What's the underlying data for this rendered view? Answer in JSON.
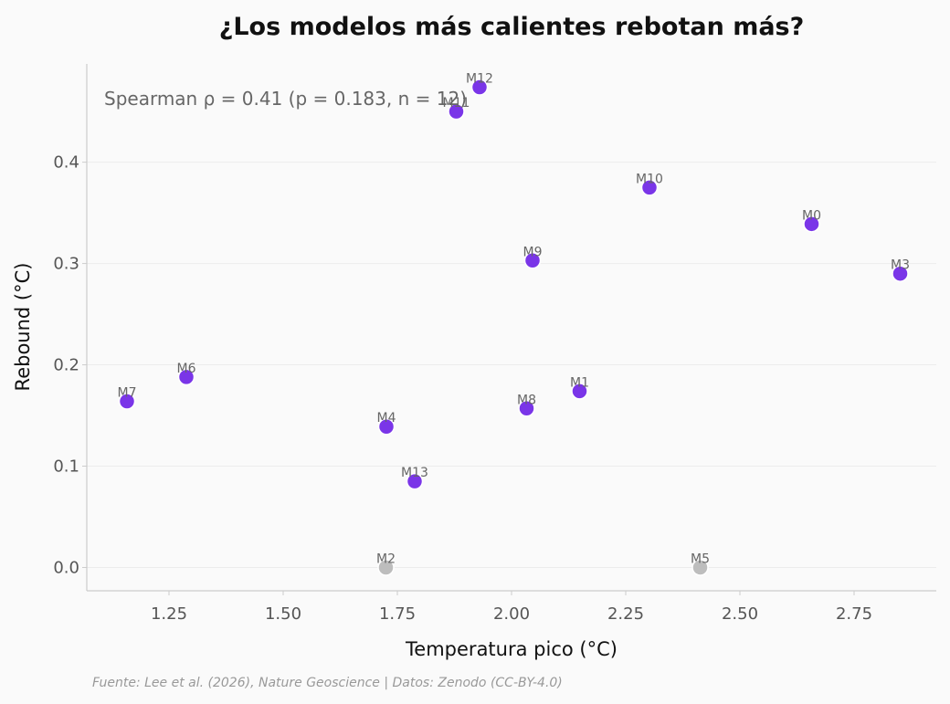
{
  "chart_data": {
    "type": "scatter",
    "title": "¿Los modelos más calientes rebotan más?",
    "xlabel": "Temperatura pico (°C)",
    "ylabel": "Rebound (°C)",
    "xlim": [
      1.07,
      2.93
    ],
    "ylim": [
      -0.023,
      0.497
    ],
    "xticks": [
      1.25,
      1.5,
      1.75,
      2.0,
      2.25,
      2.5,
      2.75
    ],
    "xtick_labels": [
      "1.25",
      "1.50",
      "1.75",
      "2.00",
      "2.25",
      "2.50",
      "2.75"
    ],
    "yticks": [
      0.0,
      0.1,
      0.2,
      0.3,
      0.4
    ],
    "ytick_labels": [
      "0.0",
      "0.1",
      "0.2",
      "0.3",
      "0.4"
    ],
    "grid": "horizontal",
    "annotation": "Spearman ρ = 0.41 (p = 0.183, n = 12)",
    "source": "Fuente: Lee et al. (2026), Nature Geoscience | Datos: Zenodo (CC-BY-4.0)",
    "colors": {
      "highlight": "#7a35e8",
      "muted": "#bdbdbd"
    },
    "points": [
      {
        "label": "M0",
        "x": 2.657,
        "y": 0.339,
        "group": "highlight"
      },
      {
        "label": "M1",
        "x": 2.149,
        "y": 0.174,
        "group": "highlight"
      },
      {
        "label": "M2",
        "x": 1.725,
        "y": 0.0,
        "group": "muted"
      },
      {
        "label": "M3",
        "x": 2.851,
        "y": 0.29,
        "group": "highlight"
      },
      {
        "label": "M4",
        "x": 1.726,
        "y": 0.139,
        "group": "highlight"
      },
      {
        "label": "M5",
        "x": 2.413,
        "y": 0.0,
        "group": "muted"
      },
      {
        "label": "M6",
        "x": 1.288,
        "y": 0.188,
        "group": "highlight"
      },
      {
        "label": "M7",
        "x": 1.158,
        "y": 0.164,
        "group": "highlight"
      },
      {
        "label": "M8",
        "x": 2.033,
        "y": 0.157,
        "group": "highlight"
      },
      {
        "label": "M9",
        "x": 2.046,
        "y": 0.303,
        "group": "highlight"
      },
      {
        "label": "M10",
        "x": 2.302,
        "y": 0.375,
        "group": "highlight"
      },
      {
        "label": "M11",
        "x": 1.879,
        "y": 0.45,
        "group": "highlight"
      },
      {
        "label": "M12",
        "x": 1.93,
        "y": 0.474,
        "group": "highlight"
      },
      {
        "label": "M13",
        "x": 1.788,
        "y": 0.085,
        "group": "highlight"
      }
    ]
  }
}
